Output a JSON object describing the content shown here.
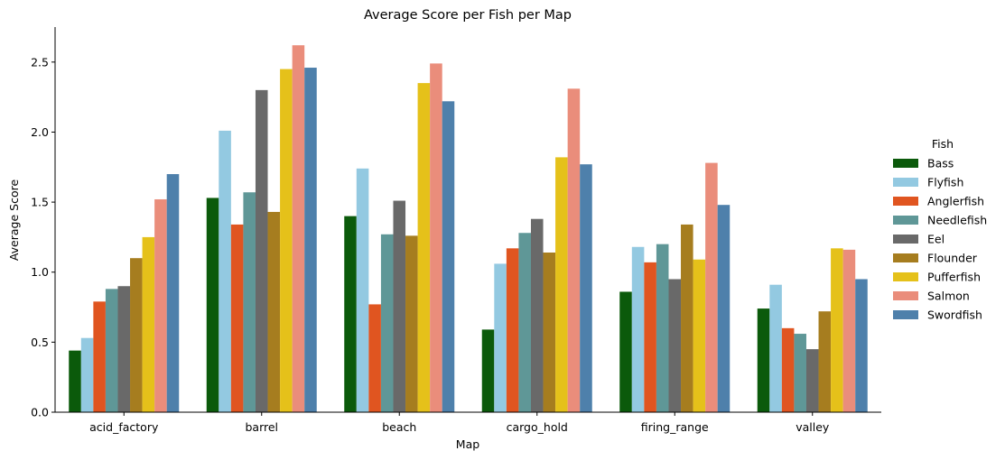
{
  "chart_data": {
    "type": "bar",
    "title": "Average Score per Fish per Map",
    "xlabel": "Map",
    "ylabel": "Average Score",
    "ylim": [
      0,
      2.75
    ],
    "yticks": [
      "0.0",
      "0.5",
      "1.0",
      "1.5",
      "2.0",
      "2.5"
    ],
    "grid": false,
    "legend_title": "Fish",
    "legend_position": "right",
    "categories": [
      "acid_factory",
      "barrel",
      "beach",
      "cargo_hold",
      "firing_range",
      "valley"
    ],
    "series": [
      {
        "name": "Bass",
        "color": "#0b5a0b",
        "values": [
          0.44,
          1.53,
          1.4,
          0.59,
          0.86,
          0.74
        ]
      },
      {
        "name": "Flyfish",
        "color": "#93c9e1",
        "values": [
          0.53,
          2.01,
          1.74,
          1.06,
          1.18,
          0.91
        ]
      },
      {
        "name": "Anglerfish",
        "color": "#e05520",
        "values": [
          0.79,
          1.34,
          0.77,
          1.17,
          1.07,
          0.6
        ]
      },
      {
        "name": "Needlefish",
        "color": "#5f9797",
        "values": [
          0.88,
          1.57,
          1.27,
          1.28,
          1.2,
          0.56
        ]
      },
      {
        "name": "Eel",
        "color": "#696969",
        "values": [
          0.9,
          2.3,
          1.51,
          1.38,
          0.95,
          0.45
        ]
      },
      {
        "name": "Flounder",
        "color": "#a67d1f",
        "values": [
          1.1,
          1.43,
          1.26,
          1.14,
          1.34,
          0.72
        ]
      },
      {
        "name": "Pufferfish",
        "color": "#e5c11a",
        "values": [
          1.25,
          2.45,
          2.35,
          1.82,
          1.09,
          1.17
        ]
      },
      {
        "name": "Salmon",
        "color": "#ea8d7b",
        "values": [
          1.52,
          2.62,
          2.49,
          2.31,
          1.78,
          1.16
        ]
      },
      {
        "name": "Swordfish",
        "color": "#4e80ab",
        "values": [
          1.7,
          2.46,
          2.22,
          1.77,
          1.48,
          0.95
        ]
      }
    ]
  }
}
